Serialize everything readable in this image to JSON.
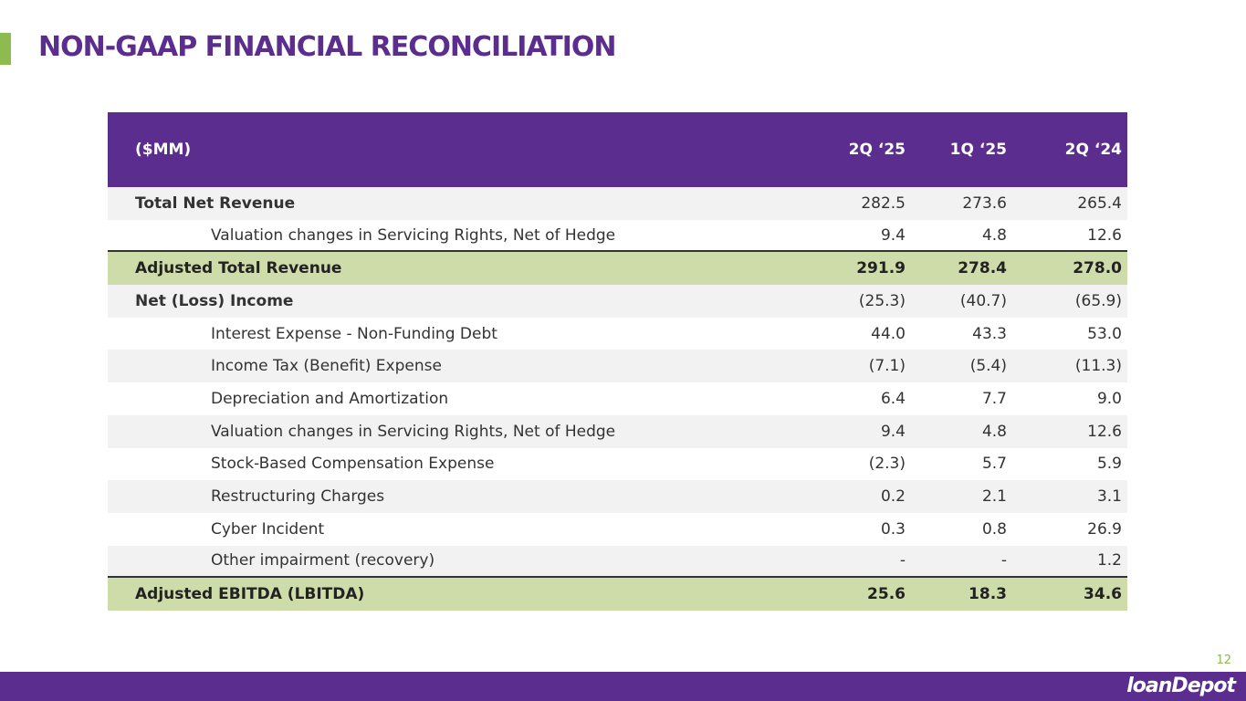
{
  "title": "NON-GAAP FINANCIAL RECONCILIATION",
  "table": {
    "headers": [
      "($MM)",
      "2Q ‘25",
      "1Q ‘25",
      "2Q ‘24"
    ],
    "rows": [
      {
        "label": "Total Net Revenue",
        "values": [
          "282.5",
          "273.6",
          "265.4"
        ],
        "style": "bold",
        "bg": "gray"
      },
      {
        "label": "Valuation changes in Servicing Rights, Net of Hedge",
        "values": [
          "9.4",
          "4.8",
          "12.6"
        ],
        "style": "indent",
        "bg": "white"
      },
      {
        "label": "Adjusted Total Revenue",
        "values": [
          "291.9",
          "278.4",
          "278.0"
        ],
        "style": "bold",
        "bg": "green"
      },
      {
        "label": "Net (Loss) Income",
        "values": [
          "(25.3)",
          "(40.7)",
          "(65.9)"
        ],
        "style": "bold",
        "bg": "gray"
      },
      {
        "label": "Interest Expense - Non-Funding Debt",
        "values": [
          "44.0",
          "43.3",
          "53.0"
        ],
        "style": "indent",
        "bg": "white"
      },
      {
        "label": "Income Tax (Benefit) Expense",
        "values": [
          "(7.1)",
          "(5.4)",
          "(11.3)"
        ],
        "style": "indent",
        "bg": "gray"
      },
      {
        "label": "Depreciation and Amortization",
        "values": [
          "6.4",
          "7.7",
          "9.0"
        ],
        "style": "indent",
        "bg": "white"
      },
      {
        "label": "Valuation changes in Servicing Rights, Net of Hedge",
        "values": [
          "9.4",
          "4.8",
          "12.6"
        ],
        "style": "indent",
        "bg": "gray"
      },
      {
        "label": "Stock-Based Compensation Expense",
        "values": [
          "(2.3)",
          "5.7",
          "5.9"
        ],
        "style": "indent",
        "bg": "white"
      },
      {
        "label": "Restructuring Charges",
        "values": [
          "0.2",
          "2.1",
          "3.1"
        ],
        "style": "indent",
        "bg": "gray"
      },
      {
        "label": "Cyber Incident",
        "values": [
          "0.3",
          "0.8",
          "26.9"
        ],
        "style": "indent",
        "bg": "white"
      },
      {
        "label": "Other impairment (recovery)",
        "values": [
          "-",
          "-",
          "1.2"
        ],
        "style": "indent",
        "bg": "gray"
      },
      {
        "label": "Adjusted EBITDA (LBITDA)",
        "values": [
          "25.6",
          "18.3",
          "34.6"
        ],
        "style": "bold",
        "bg": "green"
      }
    ]
  },
  "page_number": "12",
  "logo": "loanDepot"
}
